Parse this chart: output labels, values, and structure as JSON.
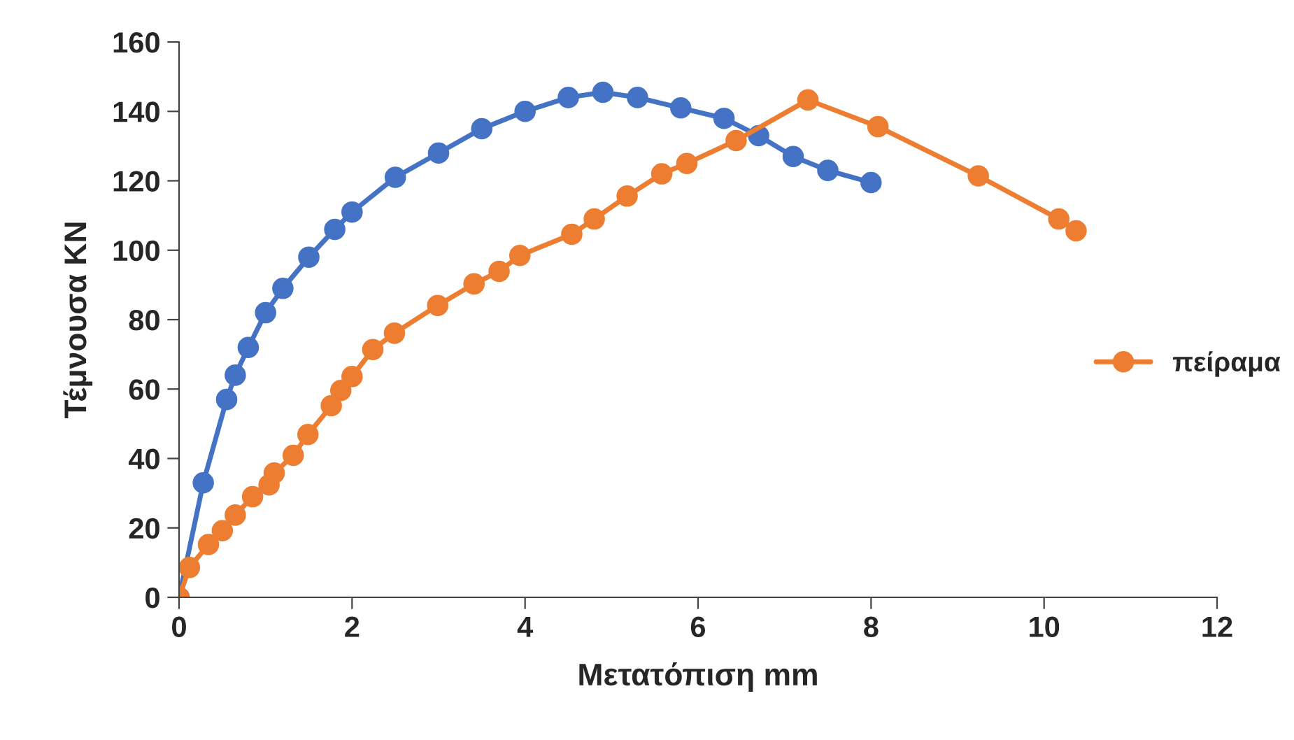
{
  "chart_data": {
    "type": "line",
    "xlabel": "Μετατόπιση mm",
    "ylabel": "Τέμνουσα KN",
    "xlim": [
      0,
      12
    ],
    "xticks": [
      0,
      2,
      4,
      6,
      8,
      10,
      12
    ],
    "ylim": [
      0,
      160
    ],
    "yticks": [
      0,
      20,
      40,
      60,
      80,
      100,
      120,
      140,
      160
    ],
    "grid": false,
    "legend": "right",
    "marker": "circle",
    "line_style": "solid",
    "series": [
      {
        "color": "#4472c4",
        "x": [
          0,
          0.28,
          0.55,
          0.65,
          0.8,
          1.0,
          1.2,
          1.5,
          1.8,
          2.0,
          2.5,
          3.0,
          3.5,
          4.0,
          4.5,
          4.9,
          5.3,
          5.8,
          6.3,
          6.7,
          7.1,
          7.5,
          8.0
        ],
        "values": [
          0,
          33,
          57,
          64,
          72,
          82,
          89,
          98,
          106,
          111,
          121,
          128,
          135,
          140,
          144,
          145.5,
          144,
          141,
          138,
          133,
          127,
          123,
          119.5
        ]
      },
      {
        "name": "πείραμα",
        "color": "#ed7d31",
        "x": [
          0,
          0.12,
          0.34,
          0.5,
          0.65,
          0.85,
          1.04,
          1.1,
          1.32,
          1.49,
          1.76,
          1.87,
          2.0,
          2.24,
          2.49,
          2.99,
          3.41,
          3.7,
          3.94,
          4.54,
          4.8,
          5.18,
          5.58,
          5.87,
          6.44,
          7.27,
          8.08,
          9.24,
          10.17,
          10.37
        ],
        "values": [
          0,
          8.6,
          15.2,
          19.2,
          23.7,
          29,
          32.4,
          35.8,
          40.9,
          46.9,
          55.2,
          59.6,
          63.6,
          71.4,
          76.1,
          84.1,
          90.3,
          93.9,
          98.5,
          104.6,
          109,
          115.6,
          122,
          125,
          131.6,
          143.3,
          135.6,
          121.4,
          109,
          105.6
        ]
      }
    ]
  }
}
